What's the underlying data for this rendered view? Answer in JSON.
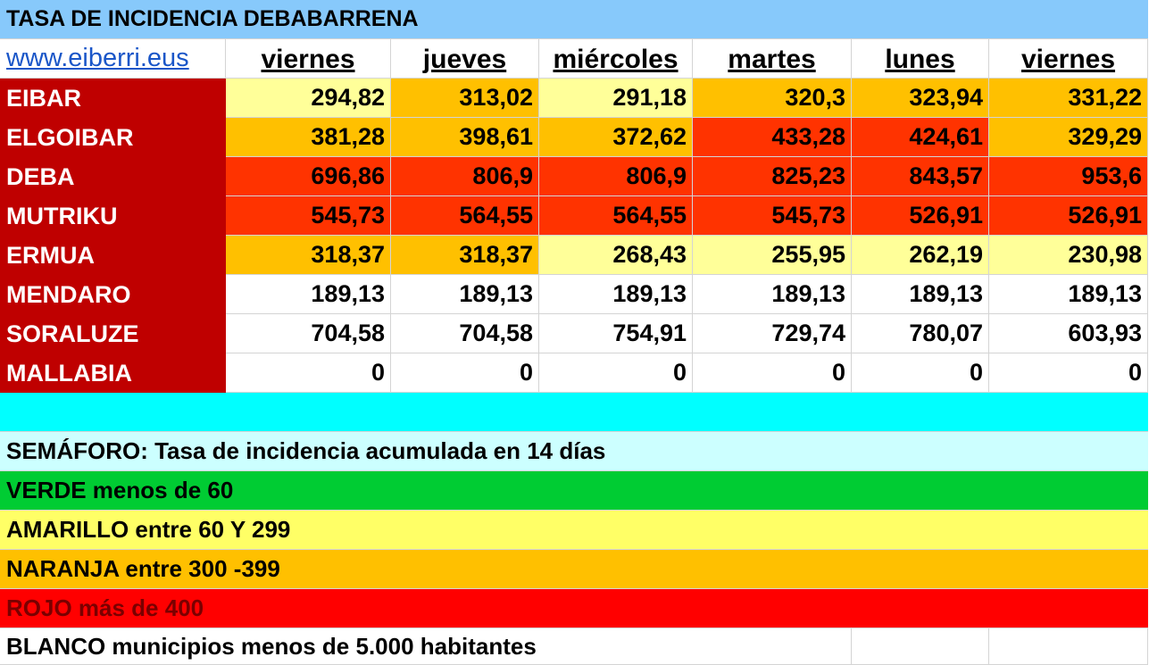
{
  "title": "TASA DE INCIDENCIA DEBABARRENA",
  "site": "www.eiberri.eus",
  "days": [
    "viernes",
    "jueves",
    "miércoles",
    "martes",
    "lunes",
    "viernes"
  ],
  "colors": {
    "red": "#ff3300",
    "orange": "#ffc000",
    "yellow": "#ffff99",
    "white": "#ffffff"
  },
  "rows": [
    {
      "name": "EIBAR",
      "values": [
        "294,82",
        "313,02",
        "291,18",
        "320,3",
        "323,94",
        "331,22"
      ],
      "fills": [
        "yellow",
        "orange",
        "yellow",
        "orange",
        "orange",
        "orange"
      ]
    },
    {
      "name": "ELGOIBAR",
      "values": [
        "381,28",
        "398,61",
        "372,62",
        "433,28",
        "424,61",
        "329,29"
      ],
      "fills": [
        "orange",
        "orange",
        "orange",
        "red",
        "red",
        "orange"
      ]
    },
    {
      "name": "DEBA",
      "values": [
        "696,86",
        "806,9",
        "806,9",
        "825,23",
        "843,57",
        "953,6"
      ],
      "fills": [
        "red",
        "red",
        "red",
        "red",
        "red",
        "red"
      ]
    },
    {
      "name": "MUTRIKU",
      "values": [
        "545,73",
        "564,55",
        "564,55",
        "545,73",
        "526,91",
        "526,91"
      ],
      "fills": [
        "red",
        "red",
        "red",
        "red",
        "red",
        "red"
      ]
    },
    {
      "name": "ERMUA",
      "values": [
        "318,37",
        "318,37",
        "268,43",
        "255,95",
        "262,19",
        "230,98"
      ],
      "fills": [
        "orange",
        "orange",
        "yellow",
        "yellow",
        "yellow",
        "yellow"
      ]
    },
    {
      "name": "MENDARO",
      "values": [
        "189,13",
        "189,13",
        "189,13",
        "189,13",
        "189,13",
        "189,13"
      ],
      "fills": [
        "white",
        "white",
        "white",
        "white",
        "white",
        "white"
      ]
    },
    {
      "name": "SORALUZE",
      "values": [
        "704,58",
        "704,58",
        "754,91",
        "729,74",
        "780,07",
        "603,93"
      ],
      "fills": [
        "white",
        "white",
        "white",
        "white",
        "white",
        "white"
      ]
    },
    {
      "name": "MALLABIA",
      "values": [
        "0",
        "0",
        "0",
        "0",
        "0",
        "0"
      ],
      "fills": [
        "white",
        "white",
        "white",
        "white",
        "white",
        "white"
      ]
    }
  ],
  "legend": {
    "header": "SEMÁFORO:  Tasa de incidencia acumulada en 14 días",
    "items": [
      {
        "text": "VERDE menos de 60",
        "bg": "#00cc33",
        "fg": "#000000"
      },
      {
        "text": "AMARILLO entre 60 Y 299",
        "bg": "#ffff66",
        "fg": "#000000"
      },
      {
        "text": "NARANJA entre 300 -399",
        "bg": "#ffc000",
        "fg": "#000000"
      },
      {
        "text": "ROJO más de 400",
        "bg": "#ff0000",
        "fg": "#7a0000"
      },
      {
        "text": "BLANCO municipios menos de 5.000 habitantes",
        "bg": "#ffffff",
        "fg": "#000000"
      }
    ],
    "header_bg": "#ccffff"
  }
}
